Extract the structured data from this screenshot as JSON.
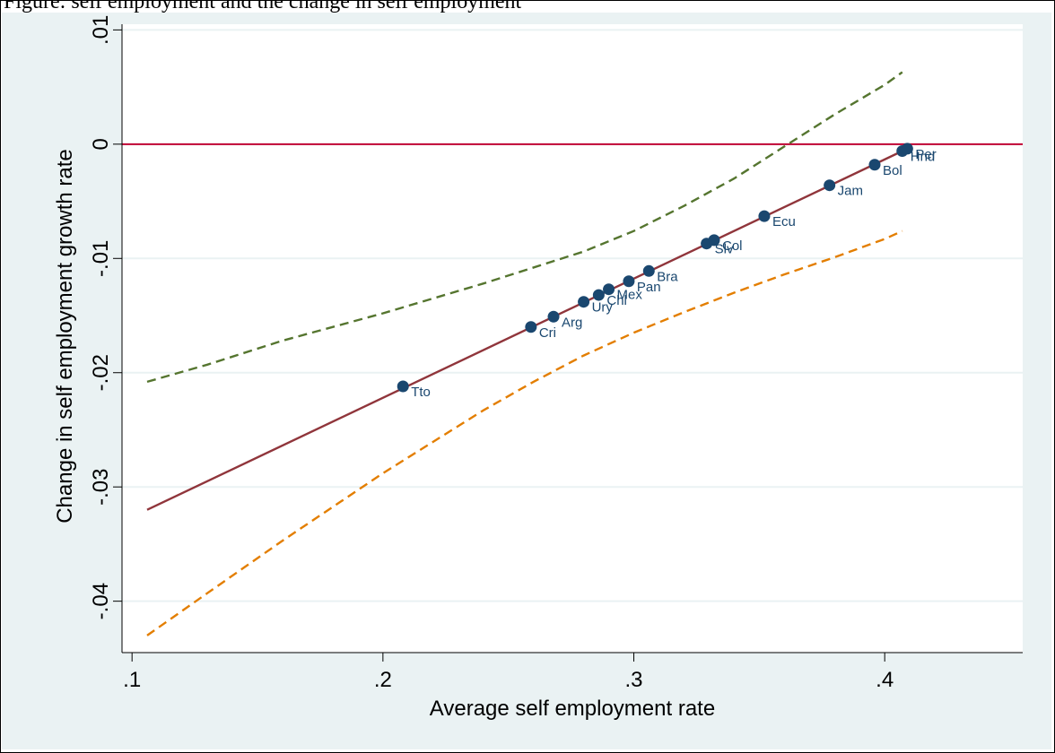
{
  "header_text": "Figure: self employment and the change in self employment",
  "colors": {
    "background": "#eaf2f3",
    "plot_area": "#ffffff",
    "grid": "#eaf2f3",
    "fit_line": "#90353b",
    "zero_line": "#c10534",
    "upper_ci": "#55752f",
    "lower_ci": "#e37e00",
    "marker": "#1a476f"
  },
  "chart_data": {
    "type": "scatter",
    "title": "",
    "xlabel": "Average self employment rate",
    "ylabel": "Change in self employment growth rate",
    "xlim": [
      0.096,
      0.455
    ],
    "ylim": [
      -0.0445,
      0.0105
    ],
    "xticks": [
      0.1,
      0.2,
      0.3,
      0.4
    ],
    "xtick_labels": [
      ".1",
      ".2",
      ".3",
      ".4"
    ],
    "yticks": [
      0.01,
      0,
      -0.01,
      -0.02,
      -0.03,
      -0.04
    ],
    "ytick_labels": [
      ".01",
      "0",
      "-.01",
      "-.02",
      "-.03",
      "-.04"
    ],
    "grid": true,
    "reference_line": {
      "y": 0
    },
    "points": [
      {
        "label": "Tto",
        "x": 0.208,
        "y": -0.0212
      },
      {
        "label": "Cri",
        "x": 0.259,
        "y": -0.016
      },
      {
        "label": "Arg",
        "x": 0.268,
        "y": -0.0151
      },
      {
        "label": "Ury",
        "x": 0.28,
        "y": -0.0138
      },
      {
        "label": "Chl",
        "x": 0.286,
        "y": -0.0132
      },
      {
        "label": "Mex",
        "x": 0.29,
        "y": -0.0127
      },
      {
        "label": "Pan",
        "x": 0.298,
        "y": -0.012
      },
      {
        "label": "Bra",
        "x": 0.306,
        "y": -0.0111
      },
      {
        "label": "Slv",
        "x": 0.329,
        "y": -0.0087
      },
      {
        "label": "Col",
        "x": 0.332,
        "y": -0.0084
      },
      {
        "label": "Ecu",
        "x": 0.352,
        "y": -0.0063
      },
      {
        "label": "Jam",
        "x": 0.378,
        "y": -0.0036
      },
      {
        "label": "Bol",
        "x": 0.396,
        "y": -0.0018
      },
      {
        "label": "Hnd",
        "x": 0.407,
        "y": -0.0006
      },
      {
        "label": "Per",
        "x": 0.409,
        "y": -0.0004
      }
    ],
    "fit_line": {
      "x": [
        0.106,
        0.407
      ],
      "y": [
        -0.032,
        -0.0006
      ]
    },
    "upper_ci": {
      "x": [
        0.106,
        0.13,
        0.16,
        0.2,
        0.24,
        0.28,
        0.3,
        0.32,
        0.34,
        0.36,
        0.38,
        0.4,
        0.407
      ],
      "y": [
        -0.0208,
        -0.0193,
        -0.0172,
        -0.0148,
        -0.0122,
        -0.0094,
        -0.0076,
        -0.0054,
        -0.003,
        -0.0002,
        0.0026,
        0.0052,
        0.0063
      ]
    },
    "lower_ci": {
      "x": [
        0.106,
        0.13,
        0.16,
        0.2,
        0.24,
        0.26,
        0.28,
        0.3,
        0.32,
        0.34,
        0.36,
        0.38,
        0.4,
        0.407
      ],
      "y": [
        -0.043,
        -0.0393,
        -0.0347,
        -0.0288,
        -0.0233,
        -0.0208,
        -0.0185,
        -0.0165,
        -0.0147,
        -0.013,
        -0.0114,
        -0.0099,
        -0.0083,
        -0.0076
      ]
    }
  }
}
